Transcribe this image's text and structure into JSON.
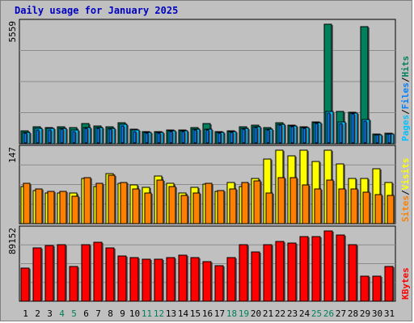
{
  "chart_data": {
    "type": "bar",
    "title": "Daily usage for January 2025",
    "categories": [
      "1",
      "2",
      "3",
      "4",
      "5",
      "6",
      "7",
      "8",
      "9",
      "10",
      "11",
      "12",
      "13",
      "14",
      "15",
      "16",
      "17",
      "18",
      "19",
      "20",
      "21",
      "22",
      "23",
      "24",
      "25",
      "26",
      "27",
      "28",
      "29",
      "30",
      "31"
    ],
    "weekend_days": [
      "4",
      "5",
      "11",
      "12",
      "18",
      "19",
      "25",
      "26"
    ],
    "colors": {
      "hits": "#00805c",
      "files": "#00c0ff",
      "pages": "#0080ff",
      "visits": "#ffff00",
      "sites": "#ff8000",
      "kbytes": "#ff0000",
      "weekend_label": "#00805c"
    },
    "panels": [
      {
        "name": "hits_files_pages",
        "axis_max_label": "5559",
        "ylim": [
          0,
          5559
        ],
        "legend": [
          "Pages",
          "/",
          "Files",
          "/",
          "Hits"
        ],
        "series": [
          {
            "name": "Hits",
            "values": [
              590,
              780,
              760,
              790,
              740,
              950,
              820,
              800,
              990,
              690,
              560,
              550,
              650,
              650,
              740,
              940,
              580,
              610,
              800,
              870,
              740,
              970,
              870,
              780,
              1030,
              5559,
              1490,
              1460,
              5450,
              440,
              490
            ]
          },
          {
            "name": "Files",
            "values": [
              520,
              700,
              700,
              720,
              630,
              740,
              760,
              720,
              890,
              620,
              510,
              510,
              590,
              600,
              660,
              680,
              520,
              560,
              700,
              800,
              690,
              900,
              810,
              760,
              980,
              1490,
              1000,
              1420,
              1120,
              420,
              460
            ]
          },
          {
            "name": "Pages",
            "values": [
              480,
              650,
              650,
              680,
              580,
              700,
              720,
              680,
              840,
              580,
              490,
              490,
              560,
              570,
              620,
              640,
              490,
              530,
              660,
              760,
              650,
              860,
              770,
              720,
              940,
              1440,
              950,
              1380,
              1070,
              400,
              440
            ]
          }
        ]
      },
      {
        "name": "visits_sites",
        "axis_max_label": "147",
        "ylim": [
          0,
          147
        ],
        "legend": [
          "Sites",
          "/",
          "Visits"
        ],
        "series": [
          {
            "name": "Visits",
            "values": [
              75,
              67,
              62,
              62,
              62,
              90,
              75,
              100,
              80,
              78,
              72,
              95,
              80,
              61,
              72,
              79,
              65,
              82,
              75,
              90,
              130,
              147,
              135,
              147,
              125,
              147,
              120,
              90,
              91,
              110,
              83
            ]
          },
          {
            "name": "Sites",
            "values": [
              80,
              70,
              65,
              65,
              55,
              92,
              80,
              97,
              83,
              70,
              62,
              87,
              75,
              57,
              62,
              80,
              67,
              70,
              82,
              86,
              62,
              92,
              92,
              77,
              69,
              87,
              69,
              70,
              63,
              58,
              56
            ]
          }
        ]
      },
      {
        "name": "kbytes",
        "axis_max_label": "89152",
        "ylim": [
          0,
          89152
        ],
        "legend": [
          "KBytes"
        ],
        "series": [
          {
            "name": "KBytes",
            "values": [
              42000,
              68000,
              71000,
              72000,
              44000,
              72000,
              75000,
              68000,
              57000,
              55000,
              53000,
              53000,
              55000,
              58000,
              55000,
              50000,
              45000,
              55000,
              72000,
              62000,
              72000,
              76000,
              74000,
              82000,
              82000,
              89152,
              84000,
              72000,
              32000,
              32000,
              44000
            ]
          }
        ]
      }
    ]
  }
}
